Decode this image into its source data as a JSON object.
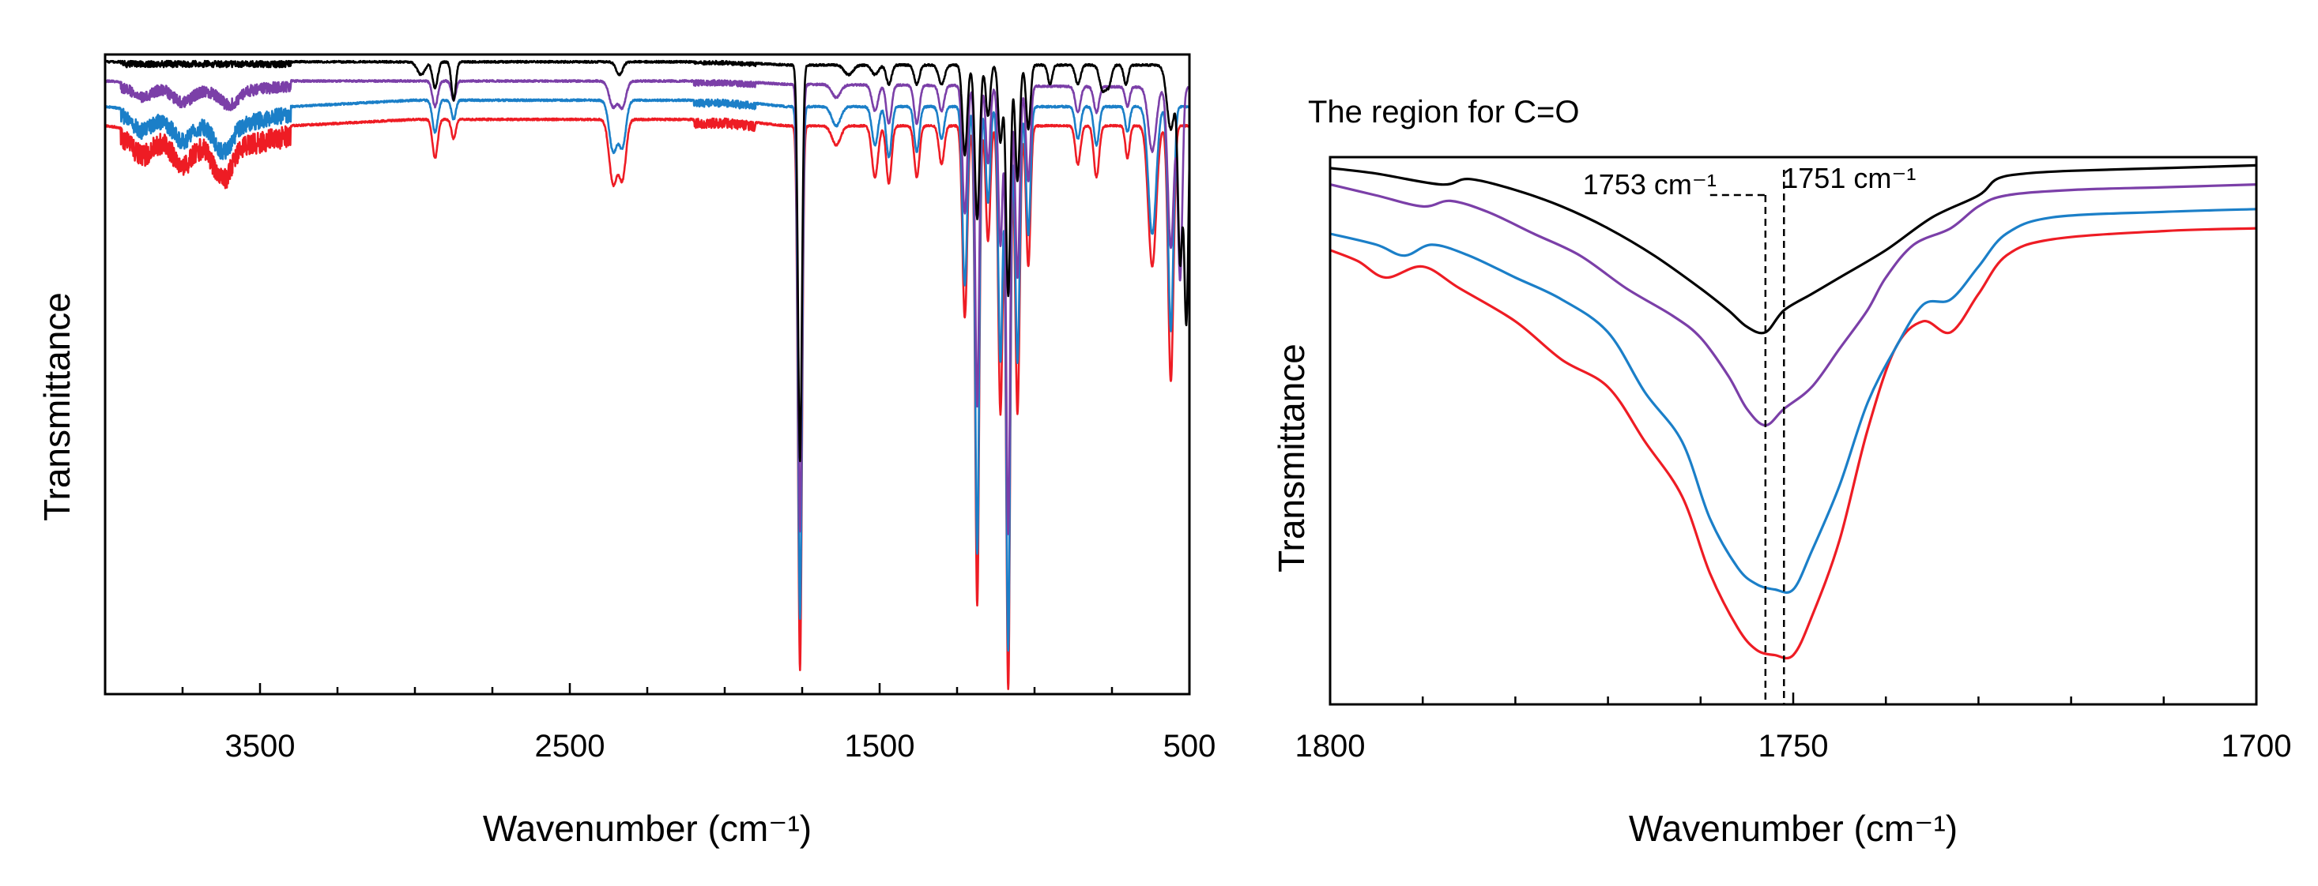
{
  "chart_data": [
    {
      "id": "full",
      "type": "line",
      "title": "",
      "xlabel": "Wavenumber (cm⁻¹)",
      "ylabel": "Transmittance",
      "xlim": [
        4000,
        500
      ],
      "ylim": [
        0,
        100
      ],
      "xticks": [
        3500,
        2500,
        1500,
        500
      ],
      "xtick_labels": [
        "3500",
        "2500",
        "1500",
        "500"
      ],
      "grid": false,
      "series": [
        {
          "name": "black",
          "color": "#000000",
          "offset": 0,
          "baseline": [
            [
              4000,
              99
            ],
            [
              3000,
              99
            ],
            [
              2000,
              99
            ],
            [
              1800,
              98.5
            ],
            [
              500,
              98.5
            ]
          ],
          "peaks": [
            [
              2980,
              2,
              18
            ],
            [
              2935,
              4,
              12
            ],
            [
              2875,
              6,
              10
            ],
            [
              2340,
              2,
              15
            ],
            [
              1757,
              62,
              9
            ],
            [
              1600,
              1.5,
              20
            ],
            [
              1515,
              1.5,
              16
            ],
            [
              1470,
              3,
              12
            ],
            [
              1380,
              3,
              12
            ],
            [
              1300,
              3,
              14
            ],
            [
              1225,
              14,
              11
            ],
            [
              1185,
              24,
              11
            ],
            [
              1150,
              8,
              10
            ],
            [
              1110,
              12,
              10
            ],
            [
              1085,
              36,
              10
            ],
            [
              1055,
              18,
              10
            ],
            [
              1020,
              10,
              10
            ],
            [
              950,
              3,
              10
            ],
            [
              860,
              3,
              12
            ],
            [
              780,
              4,
              14
            ],
            [
              760,
              3,
              12
            ],
            [
              705,
              3,
              10
            ],
            [
              560,
              10,
              18
            ],
            [
              530,
              30,
              10
            ],
            [
              510,
              40,
              10
            ]
          ]
        },
        {
          "name": "purple",
          "color": "#7b3fa8",
          "offset": 3.2,
          "baseline": [
            [
              4000,
              96
            ],
            [
              3600,
              95
            ],
            [
              3400,
              96
            ],
            [
              3000,
              96
            ],
            [
              2000,
              96
            ],
            [
              1800,
              95.5
            ],
            [
              500,
              95
            ]
          ],
          "peaks": [
            [
              3880,
              1.5,
              40
            ],
            [
              3750,
              2,
              40
            ],
            [
              3600,
              2,
              40
            ],
            [
              2935,
              4,
              12
            ],
            [
              2875,
              3,
              10
            ],
            [
              2360,
              4,
              18
            ],
            [
              2330,
              4,
              16
            ],
            [
              1757,
              70,
              9
            ],
            [
              1640,
              2,
              20
            ],
            [
              1515,
              4,
              14
            ],
            [
              1470,
              6,
              12
            ],
            [
              1380,
              6,
              12
            ],
            [
              1300,
              4,
              12
            ],
            [
              1225,
              20,
              11
            ],
            [
              1185,
              50,
              9
            ],
            [
              1150,
              12,
              10
            ],
            [
              1110,
              25,
              10
            ],
            [
              1085,
              70,
              9
            ],
            [
              1055,
              30,
              10
            ],
            [
              1020,
              15,
              10
            ],
            [
              860,
              4,
              12
            ],
            [
              800,
              4,
              12
            ],
            [
              700,
              3,
              10
            ],
            [
              620,
              10,
              18
            ],
            [
              560,
              25,
              14
            ],
            [
              530,
              30,
              10
            ]
          ]
        },
        {
          "name": "blue",
          "color": "#1b7fc8",
          "offset": 6.2,
          "baseline": [
            [
              4000,
              92
            ],
            [
              3600,
              90
            ],
            [
              3400,
              92
            ],
            [
              3000,
              93
            ],
            [
              2000,
              93
            ],
            [
              1800,
              92
            ],
            [
              500,
              92
            ]
          ],
          "peaks": [
            [
              3880,
              2,
              40
            ],
            [
              3750,
              3,
              40
            ],
            [
              3620,
              4,
              40
            ],
            [
              2935,
              5,
              12
            ],
            [
              2875,
              3,
              10
            ],
            [
              2360,
              8,
              18
            ],
            [
              2330,
              7,
              16
            ],
            [
              1757,
              80,
              9
            ],
            [
              1640,
              3,
              20
            ],
            [
              1515,
              6,
              14
            ],
            [
              1470,
              8,
              12
            ],
            [
              1380,
              7,
              12
            ],
            [
              1300,
              5,
              12
            ],
            [
              1225,
              28,
              11
            ],
            [
              1185,
              70,
              9
            ],
            [
              1150,
              15,
              10
            ],
            [
              1110,
              40,
              10
            ],
            [
              1085,
              85,
              9
            ],
            [
              1055,
              40,
              10
            ],
            [
              1020,
              20,
              10
            ],
            [
              860,
              5,
              12
            ],
            [
              800,
              6,
              12
            ],
            [
              700,
              4,
              10
            ],
            [
              620,
              20,
              18
            ],
            [
              560,
              35,
              12
            ]
          ]
        },
        {
          "name": "red",
          "color": "#ee1c24",
          "offset": 9.5,
          "baseline": [
            [
              4000,
              89
            ],
            [
              3600,
              87
            ],
            [
              3400,
              89
            ],
            [
              3000,
              90
            ],
            [
              2000,
              90
            ],
            [
              1800,
              89
            ],
            [
              500,
              89
            ]
          ],
          "peaks": [
            [
              3880,
              2.5,
              40
            ],
            [
              3750,
              3.5,
              40
            ],
            [
              3620,
              5,
              40
            ],
            [
              2935,
              6,
              12
            ],
            [
              2875,
              3,
              10
            ],
            [
              2360,
              10,
              18
            ],
            [
              2330,
              9,
              16
            ],
            [
              1757,
              85,
              9
            ],
            [
              1640,
              3,
              20
            ],
            [
              1515,
              8,
              14
            ],
            [
              1470,
              9,
              12
            ],
            [
              1380,
              8,
              12
            ],
            [
              1300,
              6,
              12
            ],
            [
              1225,
              30,
              11
            ],
            [
              1185,
              75,
              9
            ],
            [
              1150,
              18,
              10
            ],
            [
              1110,
              45,
              10
            ],
            [
              1085,
              88,
              9
            ],
            [
              1055,
              45,
              10
            ],
            [
              1020,
              22,
              10
            ],
            [
              860,
              6,
              12
            ],
            [
              800,
              8,
              12
            ],
            [
              700,
              5,
              10
            ],
            [
              620,
              22,
              18
            ],
            [
              560,
              40,
              12
            ]
          ]
        }
      ]
    },
    {
      "id": "zoom",
      "type": "line",
      "title": "The region for C=O",
      "xlabel": "Wavenumber (cm⁻¹)",
      "ylabel": "Transmittance",
      "xlim": [
        1800,
        1700
      ],
      "ylim": [
        0,
        100
      ],
      "xticks": [
        1800,
        1750,
        1700
      ],
      "xtick_labels": [
        "1800",
        "1750",
        "1700"
      ],
      "minor_ticks": [
        1790,
        1780,
        1770,
        1760,
        1740,
        1730,
        1720,
        1710
      ],
      "grid": false,
      "series": [
        {
          "name": "black",
          "color": "#000000",
          "points": [
            [
              1800,
              98
            ],
            [
              1795,
              97
            ],
            [
              1788,
              95
            ],
            [
              1785,
              96
            ],
            [
              1780,
              94
            ],
            [
              1775,
              91
            ],
            [
              1770,
              87
            ],
            [
              1765,
              82
            ],
            [
              1760,
              76
            ],
            [
              1757,
              72
            ],
            [
              1755,
              69
            ],
            [
              1753,
              68
            ],
            [
              1751,
              72
            ],
            [
              1748,
              75
            ],
            [
              1745,
              78
            ],
            [
              1740,
              83
            ],
            [
              1735,
              89
            ],
            [
              1730,
              93
            ],
            [
              1728,
              96
            ],
            [
              1725,
              97
            ],
            [
              1720,
              97.5
            ],
            [
              1710,
              98
            ],
            [
              1700,
              98.5
            ]
          ]
        },
        {
          "name": "purple",
          "color": "#7b3fa8",
          "points": [
            [
              1800,
              95
            ],
            [
              1795,
              93
            ],
            [
              1790,
              91
            ],
            [
              1787,
              92
            ],
            [
              1783,
              90
            ],
            [
              1778,
              86
            ],
            [
              1773,
              82
            ],
            [
              1768,
              76
            ],
            [
              1763,
              71
            ],
            [
              1760,
              67
            ],
            [
              1757,
              60
            ],
            [
              1755,
              54
            ],
            [
              1753,
              51
            ],
            [
              1751,
              54
            ],
            [
              1748,
              58
            ],
            [
              1745,
              65
            ],
            [
              1742,
              72
            ],
            [
              1740,
              78
            ],
            [
              1737,
              84
            ],
            [
              1733,
              87
            ],
            [
              1730,
              91
            ],
            [
              1727,
              93
            ],
            [
              1720,
              94
            ],
            [
              1710,
              94.5
            ],
            [
              1700,
              95
            ]
          ]
        },
        {
          "name": "blue",
          "color": "#1b7fc8",
          "points": [
            [
              1800,
              86
            ],
            [
              1795,
              84
            ],
            [
              1792,
              82
            ],
            [
              1789,
              84
            ],
            [
              1785,
              82
            ],
            [
              1780,
              78
            ],
            [
              1775,
              74
            ],
            [
              1770,
              68
            ],
            [
              1766,
              57
            ],
            [
              1762,
              48
            ],
            [
              1759,
              34
            ],
            [
              1756,
              25
            ],
            [
              1754,
              22
            ],
            [
              1752,
              21
            ],
            [
              1750,
              21
            ],
            [
              1748,
              28
            ],
            [
              1745,
              40
            ],
            [
              1742,
              55
            ],
            [
              1739,
              65
            ],
            [
              1736,
              73
            ],
            [
              1733,
              74
            ],
            [
              1730,
              80
            ],
            [
              1727,
              86
            ],
            [
              1722,
              89
            ],
            [
              1710,
              90
            ],
            [
              1700,
              90.5
            ]
          ]
        },
        {
          "name": "red",
          "color": "#ee1c24",
          "points": [
            [
              1800,
              83
            ],
            [
              1797,
              81
            ],
            [
              1794,
              78
            ],
            [
              1790,
              80
            ],
            [
              1786,
              76
            ],
            [
              1780,
              70
            ],
            [
              1775,
              63
            ],
            [
              1770,
              58
            ],
            [
              1766,
              48
            ],
            [
              1762,
              38
            ],
            [
              1759,
              24
            ],
            [
              1756,
              14
            ],
            [
              1754,
              10
            ],
            [
              1752,
              9
            ],
            [
              1750,
              9
            ],
            [
              1748,
              16
            ],
            [
              1745,
              30
            ],
            [
              1742,
              50
            ],
            [
              1739,
              65
            ],
            [
              1736,
              70
            ],
            [
              1733,
              68
            ],
            [
              1730,
              75
            ],
            [
              1727,
              82
            ],
            [
              1722,
              85
            ],
            [
              1710,
              86.5
            ],
            [
              1700,
              87
            ]
          ]
        }
      ],
      "annotations": [
        {
          "label": "1753 cm⁻¹",
          "x": 1753
        },
        {
          "label": "1751 cm⁻¹",
          "x": 1751
        }
      ]
    }
  ]
}
